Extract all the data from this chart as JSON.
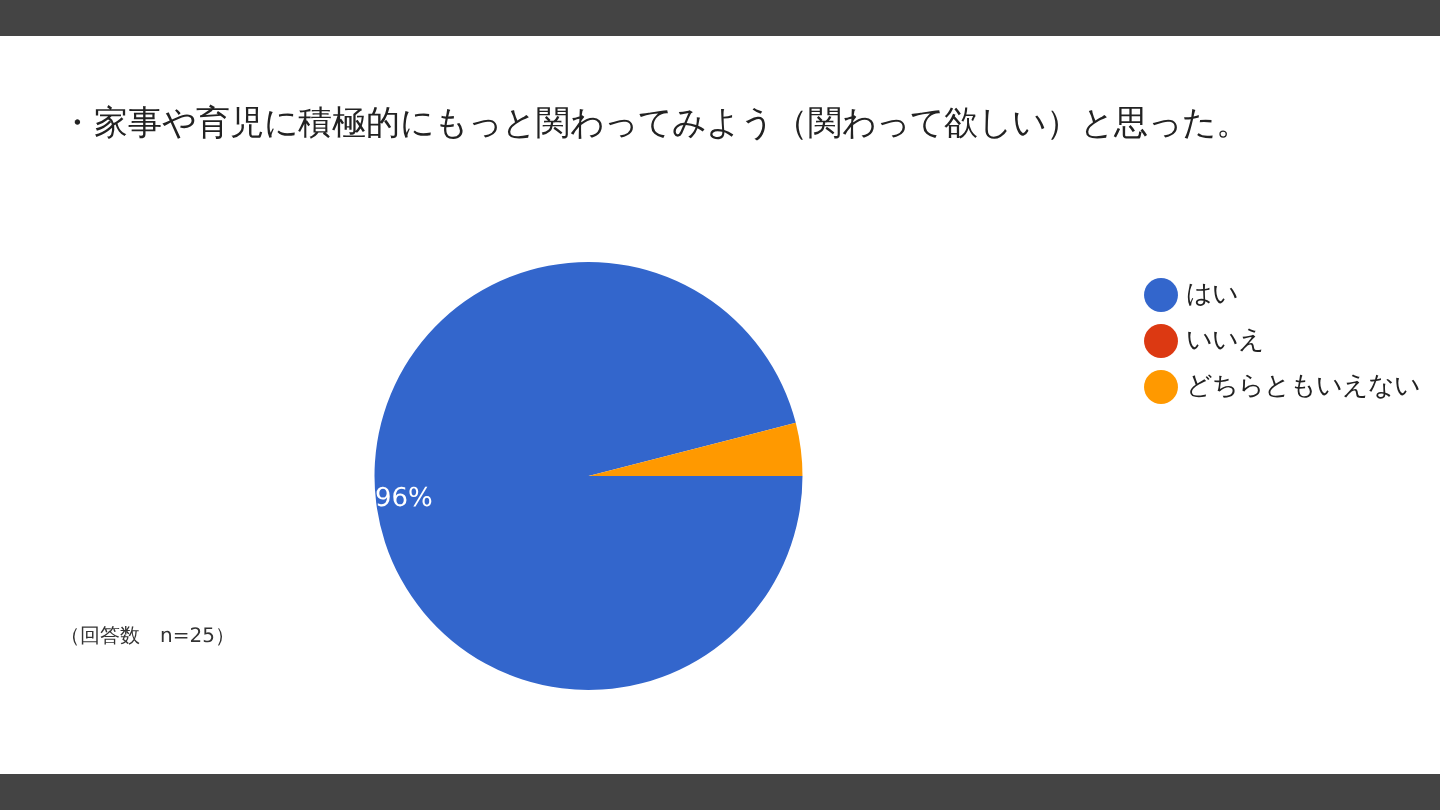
{
  "chart_data": {
    "type": "pie",
    "title": "・家事や育児に積極的にもっと関わってみよう（関わって欲しい）と思った。",
    "categories": [
      "はい",
      "いいえ",
      "どちらともいえない"
    ],
    "values": [
      96,
      0,
      4
    ],
    "colors": [
      "#3366cc",
      "#dc3912",
      "#ff9900"
    ],
    "value_labels": [
      "96%",
      null,
      null
    ],
    "legend": "right",
    "annotations": [
      "（回答数　n=25）"
    ]
  }
}
